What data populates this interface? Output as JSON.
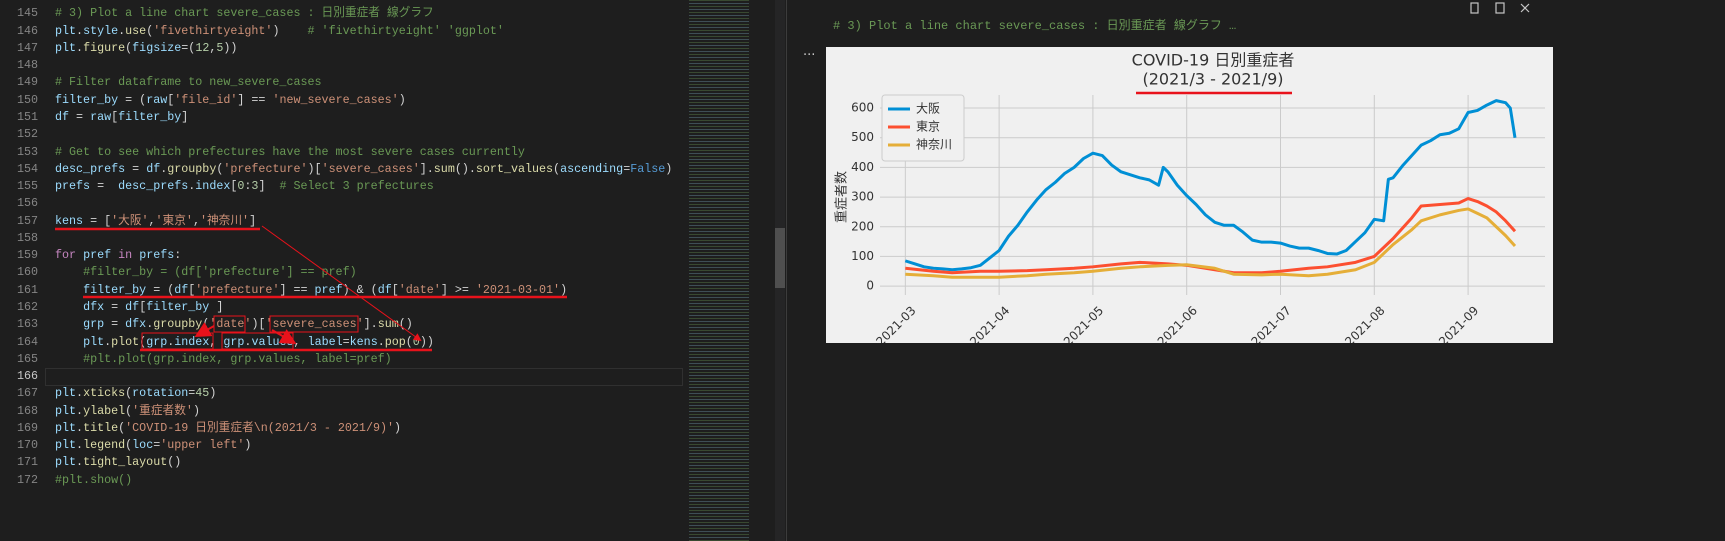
{
  "editor": {
    "active_line": 166,
    "lines": [
      {
        "number": 145,
        "text": "# 3) Plot a line chart severe_cases : 日別重症者 線グラフ"
      },
      {
        "number": 146,
        "text": "plt.style.use('fivethirtyeight')    # 'fivethirtyeight' 'ggplot'"
      },
      {
        "number": 147,
        "text": "plt.figure(figsize=(12,5))"
      },
      {
        "number": 148
      },
      {
        "number": 149,
        "text": "# Filter dataframe to new_severe_cases"
      },
      {
        "number": 150,
        "text": "filter_by = (raw['file_id'] == 'new_severe_cases')"
      },
      {
        "number": 151,
        "text": "df = raw[filter_by]"
      },
      {
        "number": 152
      },
      {
        "number": 153,
        "text": "# Get to see which prefectures have the most severe cases currently"
      },
      {
        "number": 154,
        "text": "desc_prefs = df.groupby('prefecture')['severe_cases'].sum().sort_values(ascending=False)"
      },
      {
        "number": 155,
        "text": "prefs =  desc_prefs.index[0:3]  # Select 3 prefectures"
      },
      {
        "number": 156
      },
      {
        "number": 157,
        "text": "kens = ['大阪','東京','神奈川']"
      },
      {
        "number": 158
      },
      {
        "number": 159,
        "text": "for pref in prefs:"
      },
      {
        "number": 160,
        "text": "    #filter_by = (df['prefecture'] == pref)"
      },
      {
        "number": 161,
        "text": "    filter_by = (df['prefecture'] == pref) & (df['date'] >= '2021-03-01')"
      },
      {
        "number": 162,
        "text": "    dfx = df[filter_by ]"
      },
      {
        "number": 163,
        "text": "    grp = dfx.groupby('date')['severe_cases'].sum()"
      },
      {
        "number": 164,
        "text": "    plt.plot(grp.index, grp.values, label=kens.pop(0))"
      },
      {
        "number": 165,
        "text": "    #plt.plot(grp.index, grp.values, label=pref)"
      },
      {
        "number": 166
      },
      {
        "number": 167,
        "text": "plt.xticks(rotation=45)"
      },
      {
        "number": 168,
        "text": "plt.ylabel('重症者数')"
      },
      {
        "number": 169,
        "text": "plt.title('COVID-19 日別重症者\\n(2021/3 - 2021/9)')"
      },
      {
        "number": 170,
        "text": "plt.legend(loc='upper left')"
      },
      {
        "number": 171,
        "text": "plt.tight_layout()"
      },
      {
        "number": 172,
        "text": "#plt.show()"
      }
    ]
  },
  "output": {
    "header": "# 3) Plot a line chart severe_cases : 日別重症者 線グラフ …",
    "menu": "...",
    "chart_data": {
      "type": "line",
      "title": "COVID-19 日別重症者",
      "subtitle": "(2021/3 - 2021/9)",
      "y_label": "重症者数",
      "xlim": [
        2.73,
        9.82
      ],
      "ylim": [
        -30,
        644
      ],
      "grid": true,
      "legend": "upper left",
      "xticks": [
        {
          "value": 3,
          "label": "2021-03"
        },
        {
          "value": 4,
          "label": "2021-04"
        },
        {
          "value": 5,
          "label": "2021-05"
        },
        {
          "value": 6,
          "label": "2021-06"
        },
        {
          "value": 7,
          "label": "2021-07"
        },
        {
          "value": 8,
          "label": "2021-08"
        },
        {
          "value": 9,
          "label": "2021-09"
        }
      ],
      "yticks": [
        0,
        100,
        200,
        300,
        400,
        500,
        600
      ],
      "series": [
        {
          "name": "大阪",
          "color": "#008fd5",
          "x": [
            3.0,
            3.1,
            3.2,
            3.3,
            3.4,
            3.5,
            3.6,
            3.7,
            3.8,
            3.9,
            4.0,
            4.1,
            4.2,
            4.3,
            4.4,
            4.5,
            4.6,
            4.7,
            4.8,
            4.9,
            5.0,
            5.1,
            5.2,
            5.3,
            5.4,
            5.5,
            5.6,
            5.7,
            5.75,
            5.8,
            5.9,
            6.0,
            6.1,
            6.2,
            6.3,
            6.4,
            6.5,
            6.6,
            6.7,
            6.8,
            6.9,
            7.0,
            7.1,
            7.2,
            7.3,
            7.4,
            7.5,
            7.6,
            7.7,
            7.8,
            7.9,
            8.0,
            8.1,
            8.15,
            8.2,
            8.3,
            8.4,
            8.5,
            8.6,
            8.7,
            8.8,
            8.9,
            9.0,
            9.1,
            9.2,
            9.3,
            9.4,
            9.45,
            9.5
          ],
          "values": [
            85,
            75,
            65,
            60,
            58,
            55,
            58,
            62,
            70,
            95,
            120,
            168,
            205,
            250,
            290,
            325,
            350,
            380,
            400,
            430,
            448,
            440,
            408,
            385,
            375,
            365,
            358,
            340,
            400,
            385,
            340,
            305,
            275,
            240,
            215,
            205,
            205,
            182,
            155,
            148,
            148,
            145,
            135,
            128,
            128,
            120,
            110,
            108,
            120,
            150,
            180,
            225,
            220,
            360,
            365,
            405,
            440,
            475,
            490,
            510,
            515,
            530,
            585,
            592,
            610,
            625,
            618,
            600,
            500
          ]
        },
        {
          "name": "東京",
          "color": "#fc4f30",
          "x": [
            3.0,
            3.3,
            3.5,
            3.8,
            4.0,
            4.3,
            4.5,
            4.8,
            5.0,
            5.3,
            5.5,
            5.8,
            6.0,
            6.3,
            6.5,
            6.8,
            7.0,
            7.3,
            7.5,
            7.8,
            8.0,
            8.2,
            8.4,
            8.5,
            8.7,
            8.9,
            9.0,
            9.1,
            9.2,
            9.3,
            9.4,
            9.5
          ],
          "values": [
            60,
            50,
            45,
            50,
            50,
            52,
            55,
            60,
            65,
            75,
            80,
            75,
            70,
            55,
            45,
            45,
            50,
            60,
            65,
            80,
            100,
            160,
            230,
            270,
            275,
            280,
            295,
            285,
            270,
            250,
            220,
            185
          ]
        },
        {
          "name": "神奈川",
          "color": "#e5ae38",
          "x": [
            3.0,
            3.3,
            3.5,
            3.8,
            4.0,
            4.3,
            4.5,
            4.8,
            5.0,
            5.3,
            5.5,
            5.8,
            6.0,
            6.3,
            6.5,
            6.8,
            7.0,
            7.3,
            7.5,
            7.8,
            8.0,
            8.2,
            8.4,
            8.5,
            8.7,
            8.9,
            9.0,
            9.1,
            9.2,
            9.3,
            9.4,
            9.5
          ],
          "values": [
            40,
            35,
            30,
            30,
            30,
            35,
            40,
            45,
            50,
            60,
            65,
            70,
            72,
            60,
            40,
            38,
            40,
            35,
            40,
            55,
            80,
            140,
            190,
            220,
            240,
            255,
            260,
            245,
            230,
            200,
            170,
            135
          ]
        }
      ]
    }
  }
}
